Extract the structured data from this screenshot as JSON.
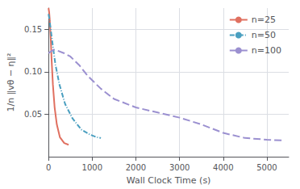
{
  "chart_data": {
    "type": "line",
    "xlabel": "Wall Clock Time (s)",
    "ylabel": "1/n ‖vθ − η‖²",
    "xlim": [
      0,
      5500
    ],
    "ylim": [
      0.0,
      0.175
    ],
    "xticks": [
      0,
      1000,
      2000,
      3000,
      4000,
      5000
    ],
    "yticks": [
      {
        "value": 0.05,
        "label": "0.05"
      },
      {
        "value": 0.1,
        "label": "0.10"
      },
      {
        "value": 0.15,
        "label": "0.15"
      }
    ],
    "grid": true,
    "legend": "upper right",
    "series": [
      {
        "name": "n=25",
        "color": "#e07060",
        "line_style": "solid",
        "x": [
          0,
          15,
          30,
          50,
          70,
          100,
          140,
          190,
          260,
          360,
          460
        ],
        "values": [
          0.175,
          0.17,
          0.16,
          0.14,
          0.115,
          0.085,
          0.058,
          0.038,
          0.023,
          0.016,
          0.014
        ]
      },
      {
        "name": "n=50",
        "color": "#4a9fc0",
        "line_style": "dashdot",
        "x": [
          0,
          20,
          50,
          100,
          160,
          250,
          380,
          550,
          750,
          950,
          1100,
          1200
        ],
        "values": [
          0.168,
          0.162,
          0.15,
          0.13,
          0.108,
          0.085,
          0.062,
          0.045,
          0.032,
          0.026,
          0.023,
          0.022
        ]
      },
      {
        "name": "n=100",
        "color": "#9b90d0",
        "line_style": "dashed",
        "x": [
          0,
          60,
          120,
          200,
          350,
          500,
          700,
          900,
          1200,
          1500,
          2000,
          2500,
          3000,
          3500,
          4000,
          4500,
          5000,
          5400
        ],
        "values": [
          0.122,
          0.124,
          0.126,
          0.125,
          0.122,
          0.118,
          0.108,
          0.095,
          0.08,
          0.068,
          0.058,
          0.052,
          0.046,
          0.038,
          0.028,
          0.022,
          0.02,
          0.019
        ]
      }
    ]
  }
}
